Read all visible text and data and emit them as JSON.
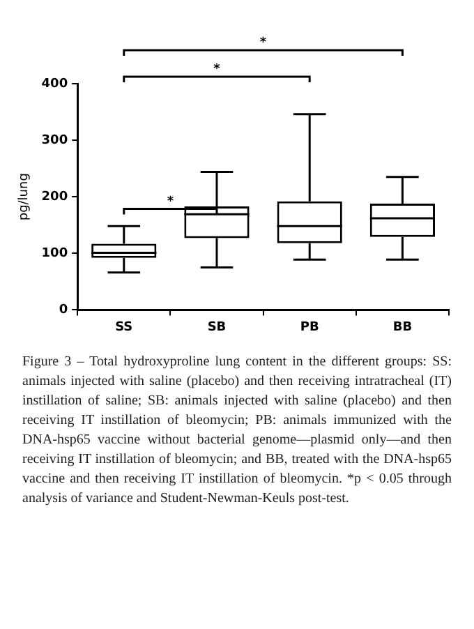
{
  "chart_data": {
    "type": "box",
    "ylabel": "pg/lung",
    "categories": [
      "SS",
      "SB",
      "PB",
      "BB"
    ],
    "boxes": [
      {
        "low": 66,
        "q1": 92,
        "median": 101,
        "q3": 117,
        "high": 148
      },
      {
        "low": 75,
        "q1": 127,
        "median": 169,
        "q3": 183,
        "high": 244
      },
      {
        "low": 89,
        "q1": 118,
        "median": 148,
        "q3": 192,
        "high": 346
      },
      {
        "low": 89,
        "q1": 129,
        "median": 162,
        "q3": 188,
        "high": 235
      }
    ],
    "ylim": [
      0,
      400
    ],
    "yticks": [
      0,
      100,
      200,
      300,
      400
    ],
    "grid": false,
    "legend": false,
    "annotations": [
      "*",
      "*",
      "*",
      "Figure 3 – Total hydroxyproline lung content in the different groups: SS: animals injected with saline (placebo) and then receiving intratracheal (IT) instillation of saline; SB: animals injected with saline (placebo) and then receiving IT instillation of bleomycin; PB: animals immunized with the DNA-hsp65 vaccine without bacterial genome—plasmid only—and then receiving IT instillation of bleomycin; and BB, treated with the DNA-hsp65 vaccine and then receiving IT instillation of bleomycin. *p < 0.05 through analysis of variance and Student-Newman-Keuls post-test."
    ]
  }
}
